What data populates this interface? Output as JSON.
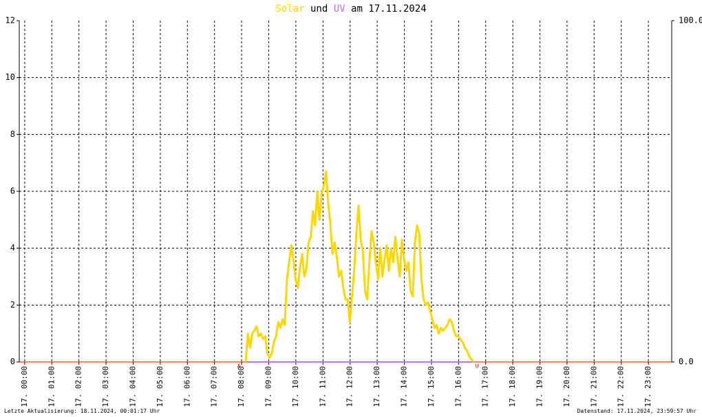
{
  "chart_data": {
    "type": "line",
    "title_connector": "und",
    "title_date": "am 17.11.2024",
    "series": [
      {
        "name": "Solar",
        "color": "#ffd700",
        "x": [
          8.15,
          8.23,
          8.31,
          8.39,
          8.47,
          8.55,
          8.63,
          8.71,
          8.79,
          8.87,
          8.95,
          9.03,
          9.11,
          9.19,
          9.27,
          9.35,
          9.43,
          9.51,
          9.59,
          9.67,
          9.75,
          9.83,
          9.91,
          9.99,
          10.07,
          10.15,
          10.23,
          10.31,
          10.39,
          10.47,
          10.55,
          10.63,
          10.71,
          10.79,
          10.87,
          10.95,
          11.03,
          11.11,
          11.19,
          11.27,
          11.35,
          11.43,
          11.51,
          11.59,
          11.67,
          11.75,
          11.83,
          11.91,
          11.99,
          12.07,
          12.15,
          12.23,
          12.31,
          12.39,
          12.47,
          12.55,
          12.63,
          12.71,
          12.79,
          12.87,
          12.95,
          13.03,
          13.11,
          13.19,
          13.27,
          13.35,
          13.43,
          13.51,
          13.59,
          13.67,
          13.75,
          13.83,
          13.91,
          13.99,
          14.07,
          14.15,
          14.23,
          14.31,
          14.39,
          14.47,
          14.55,
          14.63,
          14.71,
          14.79,
          14.87,
          14.95,
          15.03,
          15.11,
          15.19,
          15.27,
          15.35,
          15.43,
          15.51,
          15.59,
          15.67,
          15.75,
          15.83,
          15.91,
          15.99,
          16.07,
          16.15,
          16.23,
          16.31,
          16.39,
          16.47,
          16.55
        ],
        "values": [
          0,
          1.0,
          0.5,
          1.0,
          1.1,
          1.25,
          0.9,
          1.0,
          0.8,
          0.9,
          0.3,
          0.15,
          0.3,
          0.7,
          0.9,
          1.4,
          1.2,
          1.5,
          1.3,
          2.9,
          3.5,
          4.1,
          3.6,
          2.9,
          2.6,
          3.3,
          3.8,
          3.0,
          3.3,
          4.2,
          4.4,
          5.3,
          4.8,
          6.0,
          5.0,
          5.9,
          6.2,
          6.7,
          5.6,
          4.9,
          3.8,
          4.2,
          3.7,
          3.0,
          3.2,
          2.6,
          2.2,
          2.2,
          1.4,
          2.3,
          3.2,
          4.5,
          5.5,
          4.3,
          3.9,
          2.5,
          2.2,
          3.5,
          4.6,
          4.2,
          3.5,
          2.9,
          4.0,
          3.0,
          3.6,
          4.1,
          3.2,
          4.0,
          3.5,
          4.4,
          3.6,
          3.0,
          4.3,
          3.6,
          3.2,
          3.5,
          2.5,
          2.3,
          4.2,
          4.8,
          4.5,
          2.9,
          2.2,
          2.0,
          2.1,
          1.8,
          1.5,
          1.2,
          1.3,
          1.0,
          1.2,
          1.1,
          1.2,
          1.3,
          1.5,
          1.4,
          1.1,
          0.9,
          0.9,
          0.8,
          0.7,
          0.5,
          0.4,
          0.2,
          0.1,
          0
        ]
      },
      {
        "name": "UV",
        "color": "#cc66ff",
        "axis": "y2",
        "x": [
          8.15,
          16.55
        ],
        "values": [
          0,
          0
        ]
      }
    ],
    "xlim": [
      -0.2,
      23.86
    ],
    "xticks": [
      {
        "value": 0,
        "label": "17. 00:00"
      },
      {
        "value": 1,
        "label": "17. 01:00"
      },
      {
        "value": 2,
        "label": "17. 02:00"
      },
      {
        "value": 3,
        "label": "17. 03:00"
      },
      {
        "value": 4,
        "label": "17. 04:00"
      },
      {
        "value": 5,
        "label": "17. 05:00"
      },
      {
        "value": 6,
        "label": "17. 06:00"
      },
      {
        "value": 7,
        "label": "17. 07:00"
      },
      {
        "value": 8,
        "label": "17. 08:00"
      },
      {
        "value": 9,
        "label": "17. 09:00"
      },
      {
        "value": 10,
        "label": "17. 10:00"
      },
      {
        "value": 11,
        "label": "17. 11:00"
      },
      {
        "value": 12,
        "label": "17. 12:00"
      },
      {
        "value": 13,
        "label": "17. 13:00"
      },
      {
        "value": 14,
        "label": "17. 14:00"
      },
      {
        "value": 15,
        "label": "17. 15:00"
      },
      {
        "value": 16,
        "label": "17. 16:00"
      },
      {
        "value": 17,
        "label": "17. 17:00"
      },
      {
        "value": 18,
        "label": "17. 18:00"
      },
      {
        "value": 19,
        "label": "17. 19:00"
      },
      {
        "value": 20,
        "label": "17. 20:00"
      },
      {
        "value": 21,
        "label": "17. 21:00"
      },
      {
        "value": 22,
        "label": "17. 22:00"
      },
      {
        "value": 23,
        "label": "17. 23:00"
      }
    ],
    "ylim": [
      0,
      12
    ],
    "yticks": [
      0,
      2,
      4,
      6,
      8,
      10,
      12
    ],
    "y2lim": [
      0,
      100
    ],
    "y2ticks": [
      {
        "value": 0,
        "label": "0.0"
      },
      {
        "value": 100,
        "label": "100.0"
      }
    ],
    "grid": true,
    "annotations": [
      {
        "x": 7.9,
        "label": "A"
      },
      {
        "x": 16.68,
        "label": "U"
      }
    ],
    "footer_left": "Letzte Aktualisierung: 18.11.2024, 00:01:17 Uhr",
    "footer_right": "Datenstand: 17.11.2024, 23:59:57 Uhr"
  }
}
